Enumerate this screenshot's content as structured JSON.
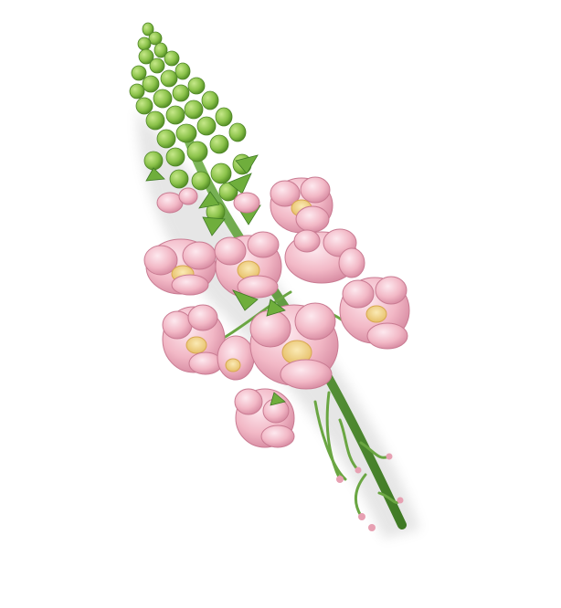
{
  "image": {
    "subject": "flower-spike",
    "palette": {
      "background": "#ffffff",
      "stem": "#5f9a3a",
      "stem_dark": "#3f7a24",
      "bud": "#8bc24a",
      "bud_dark": "#5e9a2c",
      "petal": "#f2b8c6",
      "petal_dark": "#d98aa0",
      "petal_light": "#fbe3ea",
      "center": "#f3d68a"
    }
  }
}
